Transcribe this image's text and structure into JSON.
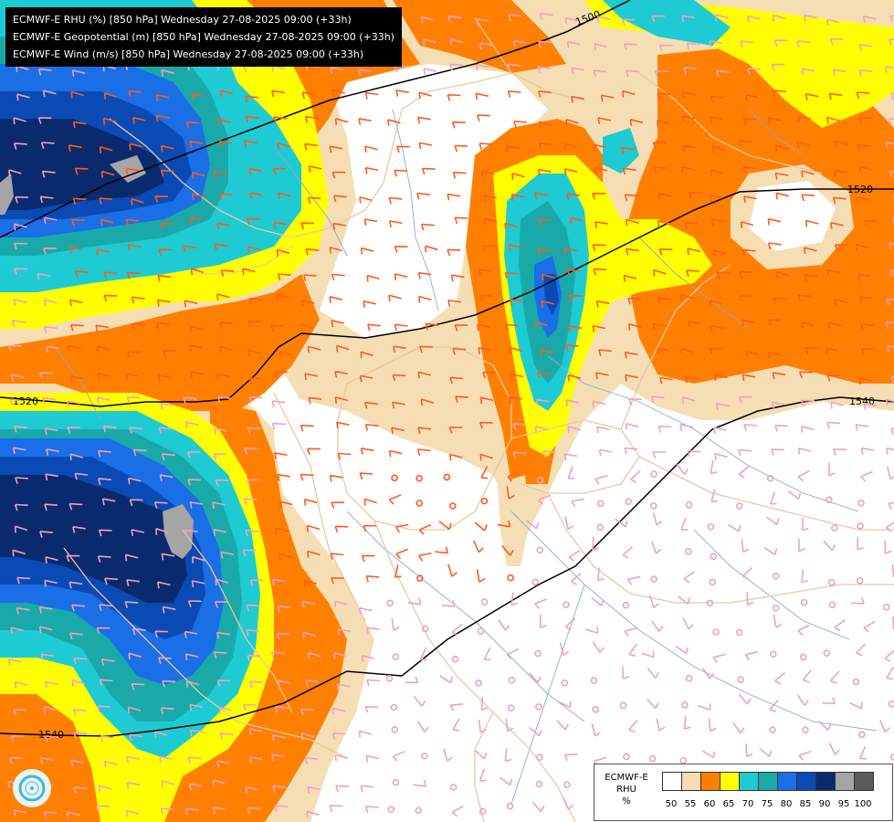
{
  "header": {
    "lines": [
      "ECMWF-E RHU (%) [850 hPa] Wednesday 27-08-2025 09:00 (+33h)",
      "ECMWF-E Geopotential (m) [850 hPa] Wednesday 27-08-2025 09:00 (+33h)",
      "ECMWF-E Wind (m/s) [850 hPa] Wednesday 27-08-2025 09:00 (+33h)"
    ]
  },
  "contours": {
    "labels": [
      "1500",
      "1520",
      "1520",
      "1540",
      "1540"
    ]
  },
  "legend": {
    "model": "ECMWF-E",
    "variable": "RHU",
    "unit": "%",
    "ticks": [
      "50",
      "55",
      "60",
      "65",
      "70",
      "75",
      "80",
      "85",
      "90",
      "95",
      "100"
    ],
    "colors": [
      "#ffffff",
      "#f5deb3",
      "#ff8000",
      "#ffff00",
      "#1ecbd2",
      "#1aa9a9",
      "#1a6ee6",
      "#0a4ab4",
      "#0a2a6e",
      "#a5a5a5",
      "#5a5a5a"
    ]
  },
  "colors": {
    "border": "#e8c9a0",
    "river": "#8aa8d8",
    "wind_orange": "#ff5a1e",
    "wind_pink": "#f0a0c0",
    "contour": "#000000"
  }
}
